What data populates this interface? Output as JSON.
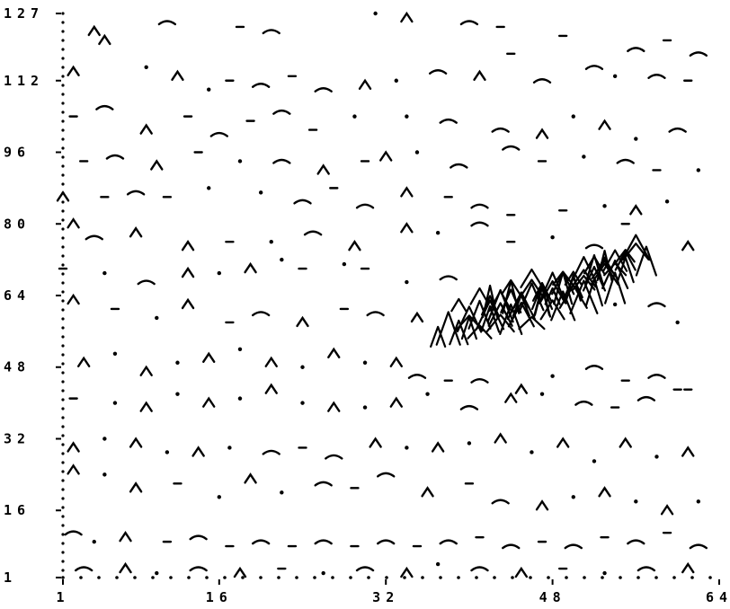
{
  "chart_data": {
    "type": "scatter",
    "title": "",
    "xlabel": "",
    "ylabel": "",
    "xlim": [
      1,
      64
    ],
    "ylim": [
      1,
      127
    ],
    "x_ticks": [
      "1",
      "16",
      "32",
      "48",
      "64"
    ],
    "y_ticks": [
      "1",
      "16",
      "32",
      "48",
      "64",
      "80",
      "96",
      "112",
      "127"
    ],
    "x_tick_values": [
      1,
      16,
      32,
      48,
      64
    ],
    "y_tick_values": [
      1,
      16,
      32,
      48,
      64,
      80,
      96,
      112,
      127
    ],
    "grid": false,
    "legend": "none",
    "colors": {
      "ink": "#000000",
      "background": "#ffffff"
    },
    "series": [
      {
        "values": [
          [
            4,
            123
          ],
          [
            5,
            121
          ],
          [
            11,
            125
          ],
          [
            18,
            124
          ],
          [
            21,
            123
          ],
          [
            31,
            127
          ],
          [
            34,
            126
          ],
          [
            40,
            125
          ],
          [
            43,
            124
          ],
          [
            44,
            118
          ],
          [
            49,
            122
          ],
          [
            56,
            119
          ],
          [
            59,
            121
          ],
          [
            62,
            118
          ],
          [
            2,
            114
          ],
          [
            9,
            115
          ],
          [
            12,
            113
          ],
          [
            15,
            110
          ],
          [
            17,
            112
          ],
          [
            20,
            111
          ],
          [
            23,
            113
          ],
          [
            26,
            110
          ],
          [
            30,
            111
          ],
          [
            33,
            112
          ],
          [
            37,
            114
          ],
          [
            41,
            113
          ],
          [
            47,
            112
          ],
          [
            52,
            115
          ],
          [
            54,
            113
          ],
          [
            58,
            113
          ],
          [
            61,
            112
          ],
          [
            2,
            104
          ],
          [
            5,
            106
          ],
          [
            9,
            101
          ],
          [
            13,
            104
          ],
          [
            16,
            100
          ],
          [
            19,
            103
          ],
          [
            22,
            105
          ],
          [
            25,
            101
          ],
          [
            29,
            104
          ],
          [
            34,
            104
          ],
          [
            38,
            103
          ],
          [
            43,
            101
          ],
          [
            47,
            100
          ],
          [
            50,
            104
          ],
          [
            53,
            102
          ],
          [
            56,
            99
          ],
          [
            60,
            101
          ],
          [
            3,
            94
          ],
          [
            6,
            95
          ],
          [
            10,
            93
          ],
          [
            14,
            96
          ],
          [
            18,
            94
          ],
          [
            22,
            94
          ],
          [
            26,
            92
          ],
          [
            30,
            94
          ],
          [
            32,
            95
          ],
          [
            35,
            96
          ],
          [
            39,
            93
          ],
          [
            44,
            97
          ],
          [
            47,
            94
          ],
          [
            51,
            95
          ],
          [
            55,
            94
          ],
          [
            58,
            92
          ],
          [
            62,
            92
          ],
          [
            1,
            86
          ],
          [
            5,
            86
          ],
          [
            8,
            87
          ],
          [
            11,
            86
          ],
          [
            15,
            88
          ],
          [
            20,
            87
          ],
          [
            24,
            85
          ],
          [
            27,
            88
          ],
          [
            30,
            84
          ],
          [
            34,
            87
          ],
          [
            38,
            86
          ],
          [
            41,
            84
          ],
          [
            44,
            82
          ],
          [
            49,
            83
          ],
          [
            53,
            84
          ],
          [
            56,
            83
          ],
          [
            59,
            85
          ],
          [
            2,
            80
          ],
          [
            4,
            77
          ],
          [
            8,
            78
          ],
          [
            13,
            75
          ],
          [
            17,
            76
          ],
          [
            21,
            76
          ],
          [
            25,
            78
          ],
          [
            29,
            75
          ],
          [
            34,
            79
          ],
          [
            37,
            78
          ],
          [
            41,
            80
          ],
          [
            44,
            76
          ],
          [
            48,
            77
          ],
          [
            52,
            75
          ],
          [
            55,
            80
          ],
          [
            61,
            75
          ],
          [
            1,
            70
          ],
          [
            5,
            69
          ],
          [
            9,
            67
          ],
          [
            13,
            69
          ],
          [
            16,
            69
          ],
          [
            19,
            70
          ],
          [
            22,
            72
          ],
          [
            24,
            70
          ],
          [
            28,
            71
          ],
          [
            30,
            70
          ],
          [
            34,
            67
          ],
          [
            38,
            68
          ],
          [
            2,
            63
          ],
          [
            6,
            61
          ],
          [
            10,
            59
          ],
          [
            13,
            62
          ],
          [
            17,
            58
          ],
          [
            20,
            60
          ],
          [
            24,
            58
          ],
          [
            28,
            61
          ],
          [
            31,
            60
          ],
          [
            35,
            59
          ],
          [
            54,
            62
          ],
          [
            58,
            62
          ],
          [
            60,
            58
          ],
          [
            3,
            49
          ],
          [
            6,
            51
          ],
          [
            9,
            47
          ],
          [
            12,
            49
          ],
          [
            15,
            50
          ],
          [
            18,
            52
          ],
          [
            21,
            49
          ],
          [
            24,
            48
          ],
          [
            27,
            51
          ],
          [
            30,
            49
          ],
          [
            33,
            49
          ],
          [
            35,
            46
          ],
          [
            38,
            45
          ],
          [
            41,
            45
          ],
          [
            45,
            43
          ],
          [
            48,
            46
          ],
          [
            52,
            48
          ],
          [
            55,
            45
          ],
          [
            58,
            46
          ],
          [
            61,
            43
          ],
          [
            2,
            41
          ],
          [
            6,
            40
          ],
          [
            9,
            39
          ],
          [
            12,
            42
          ],
          [
            15,
            40
          ],
          [
            18,
            41
          ],
          [
            21,
            43
          ],
          [
            24,
            40
          ],
          [
            27,
            39
          ],
          [
            30,
            39
          ],
          [
            33,
            40
          ],
          [
            36,
            42
          ],
          [
            40,
            39
          ],
          [
            44,
            41
          ],
          [
            47,
            42
          ],
          [
            51,
            40
          ],
          [
            54,
            39
          ],
          [
            57,
            41
          ],
          [
            60,
            43
          ],
          [
            2,
            30
          ],
          [
            5,
            32
          ],
          [
            8,
            31
          ],
          [
            11,
            29
          ],
          [
            14,
            29
          ],
          [
            17,
            30
          ],
          [
            21,
            29
          ],
          [
            24,
            30
          ],
          [
            27,
            28
          ],
          [
            31,
            31
          ],
          [
            34,
            30
          ],
          [
            37,
            30
          ],
          [
            40,
            31
          ],
          [
            43,
            32
          ],
          [
            46,
            29
          ],
          [
            49,
            31
          ],
          [
            52,
            27
          ],
          [
            55,
            31
          ],
          [
            58,
            28
          ],
          [
            61,
            29
          ],
          [
            2,
            25
          ],
          [
            5,
            24
          ],
          [
            8,
            21
          ],
          [
            12,
            22
          ],
          [
            16,
            19
          ],
          [
            19,
            23
          ],
          [
            22,
            20
          ],
          [
            26,
            22
          ],
          [
            29,
            21
          ],
          [
            32,
            24
          ],
          [
            36,
            20
          ],
          [
            40,
            22
          ],
          [
            43,
            18
          ],
          [
            47,
            17
          ],
          [
            50,
            19
          ],
          [
            53,
            20
          ],
          [
            56,
            18
          ],
          [
            59,
            16
          ],
          [
            62,
            18
          ],
          [
            2,
            11
          ],
          [
            4,
            9
          ],
          [
            7,
            10
          ],
          [
            11,
            9
          ],
          [
            14,
            10
          ],
          [
            17,
            8
          ],
          [
            20,
            9
          ],
          [
            23,
            8
          ],
          [
            26,
            9
          ],
          [
            29,
            8
          ],
          [
            32,
            9
          ],
          [
            35,
            8
          ],
          [
            38,
            9
          ],
          [
            41,
            10
          ],
          [
            44,
            8
          ],
          [
            47,
            9
          ],
          [
            50,
            8
          ],
          [
            53,
            10
          ],
          [
            56,
            9
          ],
          [
            59,
            11
          ],
          [
            62,
            8
          ],
          [
            3,
            3
          ],
          [
            7,
            3
          ],
          [
            10,
            2
          ],
          [
            14,
            3
          ],
          [
            18,
            2
          ],
          [
            22,
            3
          ],
          [
            26,
            2
          ],
          [
            30,
            3
          ],
          [
            34,
            2
          ],
          [
            37,
            4
          ],
          [
            41,
            3
          ],
          [
            45,
            2
          ],
          [
            49,
            3
          ],
          [
            53,
            2
          ],
          [
            57,
            3
          ],
          [
            61,
            3
          ]
        ]
      },
      {
        "values": [
          [
            39,
            62
          ],
          [
            40,
            59
          ],
          [
            41,
            64
          ],
          [
            42,
            60
          ],
          [
            43,
            63
          ],
          [
            44,
            64
          ],
          [
            45,
            60
          ],
          [
            46,
            66
          ],
          [
            47,
            63
          ],
          [
            48,
            61
          ],
          [
            49,
            66
          ],
          [
            50,
            64
          ],
          [
            51,
            67
          ],
          [
            52,
            65
          ],
          [
            53,
            70
          ],
          [
            54,
            66
          ],
          [
            40,
            57
          ],
          [
            41,
            56
          ],
          [
            42,
            59
          ],
          [
            43,
            58
          ],
          [
            44,
            59
          ],
          [
            45,
            62
          ],
          [
            46,
            58
          ],
          [
            47,
            64
          ],
          [
            48,
            64
          ],
          [
            49,
            62
          ],
          [
            50,
            66
          ],
          [
            51,
            64
          ],
          [
            52,
            68
          ],
          [
            53,
            71
          ],
          [
            54,
            69
          ],
          [
            55,
            72
          ],
          [
            42,
            63
          ],
          [
            43,
            60
          ],
          [
            44,
            66
          ],
          [
            45,
            62
          ],
          [
            46,
            68
          ],
          [
            47,
            63
          ],
          [
            48,
            65
          ],
          [
            49,
            68
          ],
          [
            50,
            66
          ],
          [
            51,
            68
          ],
          [
            52,
            70
          ],
          [
            53,
            69
          ],
          [
            54,
            70
          ],
          [
            55,
            70
          ],
          [
            56,
            74
          ],
          [
            57,
            72
          ],
          [
            37,
            55
          ],
          [
            38,
            57
          ],
          [
            39,
            56
          ],
          [
            40,
            58
          ],
          [
            41,
            60
          ],
          [
            42,
            62
          ],
          [
            43,
            62
          ],
          [
            44,
            63
          ],
          [
            45,
            63
          ],
          [
            46,
            64
          ],
          [
            47,
            65
          ],
          [
            48,
            66
          ],
          [
            49,
            67
          ],
          [
            50,
            68
          ],
          [
            51,
            70
          ],
          [
            52,
            71
          ],
          [
            53,
            71
          ],
          [
            54,
            72
          ],
          [
            55,
            73
          ],
          [
            56,
            75
          ]
        ]
      }
    ]
  }
}
